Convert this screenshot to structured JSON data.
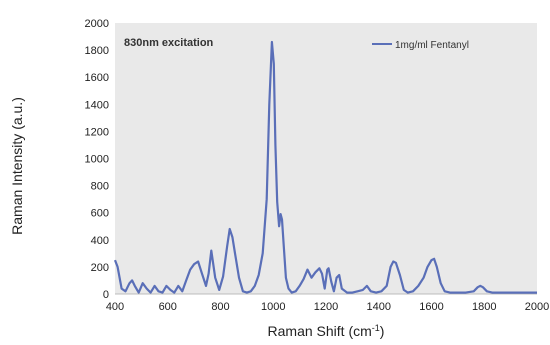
{
  "chart_data": {
    "type": "line",
    "title": "",
    "annotation": "830nm excitation",
    "xlabel": "Raman Shift (cm",
    "xlabel_sup": "-1",
    "xlabel_end": ")",
    "ylabel": "Raman Intensity (a.u.)",
    "xlim": [
      400,
      2000
    ],
    "ylim": [
      0,
      2000
    ],
    "xticks": [
      400,
      600,
      800,
      1000,
      1200,
      1400,
      1600,
      1800,
      2000
    ],
    "yticks": [
      0,
      200,
      400,
      600,
      800,
      1000,
      1200,
      1400,
      1600,
      1800,
      2000
    ],
    "grid": false,
    "legend_position": "top-right",
    "plot_background": "#e9e9e9",
    "series": [
      {
        "name": "1mg/ml Fentanyl",
        "color": "#5a6fb8",
        "x": [
          400,
          410,
          425,
          440,
          455,
          465,
          475,
          490,
          505,
          520,
          535,
          550,
          565,
          580,
          595,
          610,
          625,
          640,
          655,
          670,
          685,
          700,
          715,
          730,
          745,
          755,
          765,
          780,
          795,
          810,
          825,
          835,
          845,
          855,
          870,
          885,
          900,
          915,
          930,
          945,
          960,
          975,
          985,
          995,
          1002,
          1008,
          1015,
          1022,
          1028,
          1033,
          1040,
          1048,
          1058,
          1070,
          1085,
          1100,
          1115,
          1130,
          1145,
          1160,
          1175,
          1185,
          1195,
          1205,
          1210,
          1220,
          1230,
          1240,
          1250,
          1260,
          1280,
          1300,
          1320,
          1340,
          1355,
          1370,
          1390,
          1410,
          1430,
          1445,
          1455,
          1465,
          1480,
          1495,
          1510,
          1530,
          1550,
          1570,
          1585,
          1600,
          1610,
          1620,
          1635,
          1650,
          1670,
          1700,
          1730,
          1760,
          1775,
          1785,
          1795,
          1810,
          1830,
          1860,
          1900,
          1950,
          2000
        ],
        "values": [
          250,
          200,
          40,
          20,
          80,
          100,
          60,
          10,
          80,
          40,
          10,
          60,
          20,
          10,
          60,
          30,
          10,
          60,
          20,
          100,
          180,
          220,
          240,
          150,
          60,
          150,
          320,
          120,
          30,
          130,
          350,
          480,
          420,
          300,
          120,
          20,
          10,
          20,
          60,
          140,
          300,
          700,
          1400,
          1860,
          1700,
          1100,
          680,
          500,
          590,
          550,
          350,
          120,
          40,
          10,
          20,
          60,
          110,
          180,
          120,
          160,
          190,
          150,
          40,
          180,
          190,
          90,
          20,
          120,
          140,
          40,
          10,
          10,
          20,
          30,
          60,
          20,
          10,
          20,
          60,
          200,
          240,
          230,
          140,
          30,
          10,
          20,
          60,
          120,
          200,
          250,
          260,
          200,
          80,
          20,
          10,
          10,
          10,
          20,
          50,
          60,
          50,
          20,
          10,
          10,
          10,
          10,
          10
        ]
      }
    ]
  }
}
